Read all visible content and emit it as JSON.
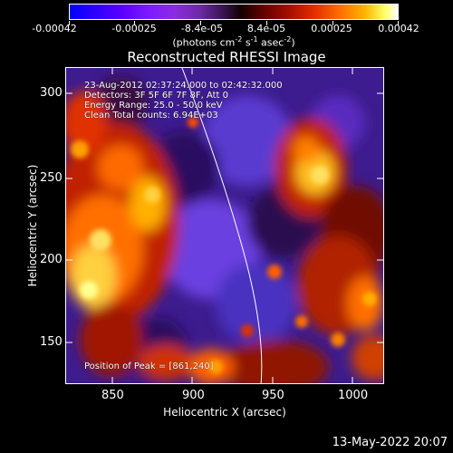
{
  "colorbar": {
    "tick_labels": [
      "-0.00042",
      "-0.00025",
      "-8.4e-05",
      "8.4e-05",
      "0.00025",
      "0.00042"
    ],
    "tick_values": [
      -0.00042,
      -0.00025,
      -8.4e-05,
      8.4e-05,
      0.00025,
      0.00042
    ],
    "range": [
      -0.00042,
      0.00042
    ],
    "units_prefix": "(photons cm",
    "units_exp1": "-2",
    "units_mid1": " s",
    "units_exp2": "-1",
    "units_mid2": " asec",
    "units_exp3": "-2",
    "units_suffix": ")"
  },
  "plot": {
    "title": "Reconstructed RHESSI Image",
    "info_time": "23-Aug-2012 02:37:24.000 to 02:42:32.000",
    "info_detectors": "Detectors: 3F 5F 6F 7F 8F, Att 0",
    "info_energy": "Energy Range: 25.0 - 50.0 keV",
    "info_clean": "Clean    Total counts: 6.94E+03",
    "peak_label": "Position of Peak = [861,240]",
    "xlabel": "Heliocentric X (arcsec)",
    "ylabel": "Heliocentric Y (arcsec)",
    "xticks": [
      "850",
      "900",
      "950",
      "1000"
    ],
    "yticks": [
      "300",
      "250",
      "200",
      "150"
    ],
    "xrange": [
      823,
      1015
    ],
    "yrange": [
      123,
      318
    ]
  },
  "footer": {
    "timestamp": "13-May-2022 20:07"
  },
  "colors": {
    "background": "#000000",
    "axis": "#ffffff",
    "limb_line": "#ffffff"
  }
}
